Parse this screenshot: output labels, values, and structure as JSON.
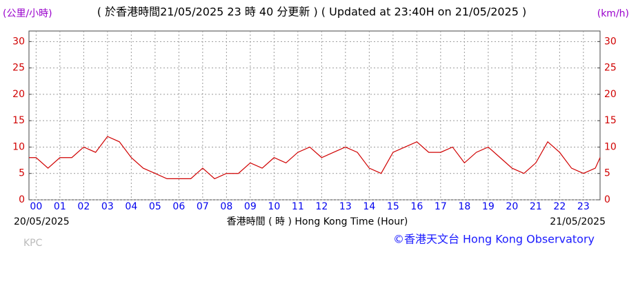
{
  "chart_data": {
    "type": "line",
    "title": "( 於香港時間21/05/2025 23 時 40 分更新 ) ( Updated at 23:40H on 21/05/2025 )",
    "y_label": "(公里/小時)",
    "y2_label": "(km/h)",
    "x_label": "香港時間 ( 時 )  Hong Kong Time (Hour)",
    "start_date": "20/05/2025",
    "end_date": "21/05/2025",
    "station": "KPC",
    "credit": "©香港天文台 Hong Kong Observatory",
    "x": [
      -0.3,
      0,
      0.5,
      1,
      1.5,
      2,
      2.5,
      3,
      3.5,
      4,
      4.5,
      5,
      5.5,
      6,
      6.5,
      7,
      7.5,
      8,
      8.5,
      9,
      9.5,
      10,
      10.5,
      11,
      11.5,
      12,
      12.5,
      13,
      13.5,
      14,
      14.5,
      15,
      15.5,
      16,
      16.5,
      17,
      17.5,
      18,
      18.5,
      19,
      19.5,
      20,
      20.5,
      21,
      21.5,
      22,
      22.5,
      23,
      23.5,
      23.7
    ],
    "values": [
      8,
      8,
      6,
      8,
      8,
      10,
      9,
      12,
      11,
      8,
      6,
      5,
      4,
      4,
      4,
      6,
      4,
      5,
      5,
      7,
      6,
      8,
      7,
      9,
      10,
      8,
      9,
      10,
      9,
      6,
      5,
      9,
      10,
      11,
      9,
      9,
      10,
      7,
      9,
      10,
      8,
      6,
      5,
      7,
      11,
      9,
      6,
      5,
      6,
      8
    ],
    "color": "#d00000",
    "xlim": [
      -0.3,
      23.7
    ],
    "xticks": [
      {
        "value": 0,
        "label": "00"
      },
      {
        "value": 1,
        "label": "01"
      },
      {
        "value": 2,
        "label": "02"
      },
      {
        "value": 3,
        "label": "03"
      },
      {
        "value": 4,
        "label": "04"
      },
      {
        "value": 5,
        "label": "05"
      },
      {
        "value": 6,
        "label": "06"
      },
      {
        "value": 7,
        "label": "07"
      },
      {
        "value": 8,
        "label": "08"
      },
      {
        "value": 9,
        "label": "09"
      },
      {
        "value": 10,
        "label": "10"
      },
      {
        "value": 11,
        "label": "11"
      },
      {
        "value": 12,
        "label": "12"
      },
      {
        "value": 13,
        "label": "13"
      },
      {
        "value": 14,
        "label": "14"
      },
      {
        "value": 15,
        "label": "15"
      },
      {
        "value": 16,
        "label": "16"
      },
      {
        "value": 17,
        "label": "17"
      },
      {
        "value": 18,
        "label": "18"
      },
      {
        "value": 19,
        "label": "19"
      },
      {
        "value": 20,
        "label": "20"
      },
      {
        "value": 21,
        "label": "21"
      },
      {
        "value": 22,
        "label": "22"
      },
      {
        "value": 23,
        "label": "23"
      }
    ],
    "ylim": [
      0,
      32
    ],
    "yticks": [
      0,
      5,
      10,
      15,
      20,
      25,
      30
    ],
    "y2lim": [
      0,
      32
    ],
    "y2ticks": [
      0,
      5,
      10,
      15,
      20,
      25,
      30
    ],
    "grid": true
  }
}
